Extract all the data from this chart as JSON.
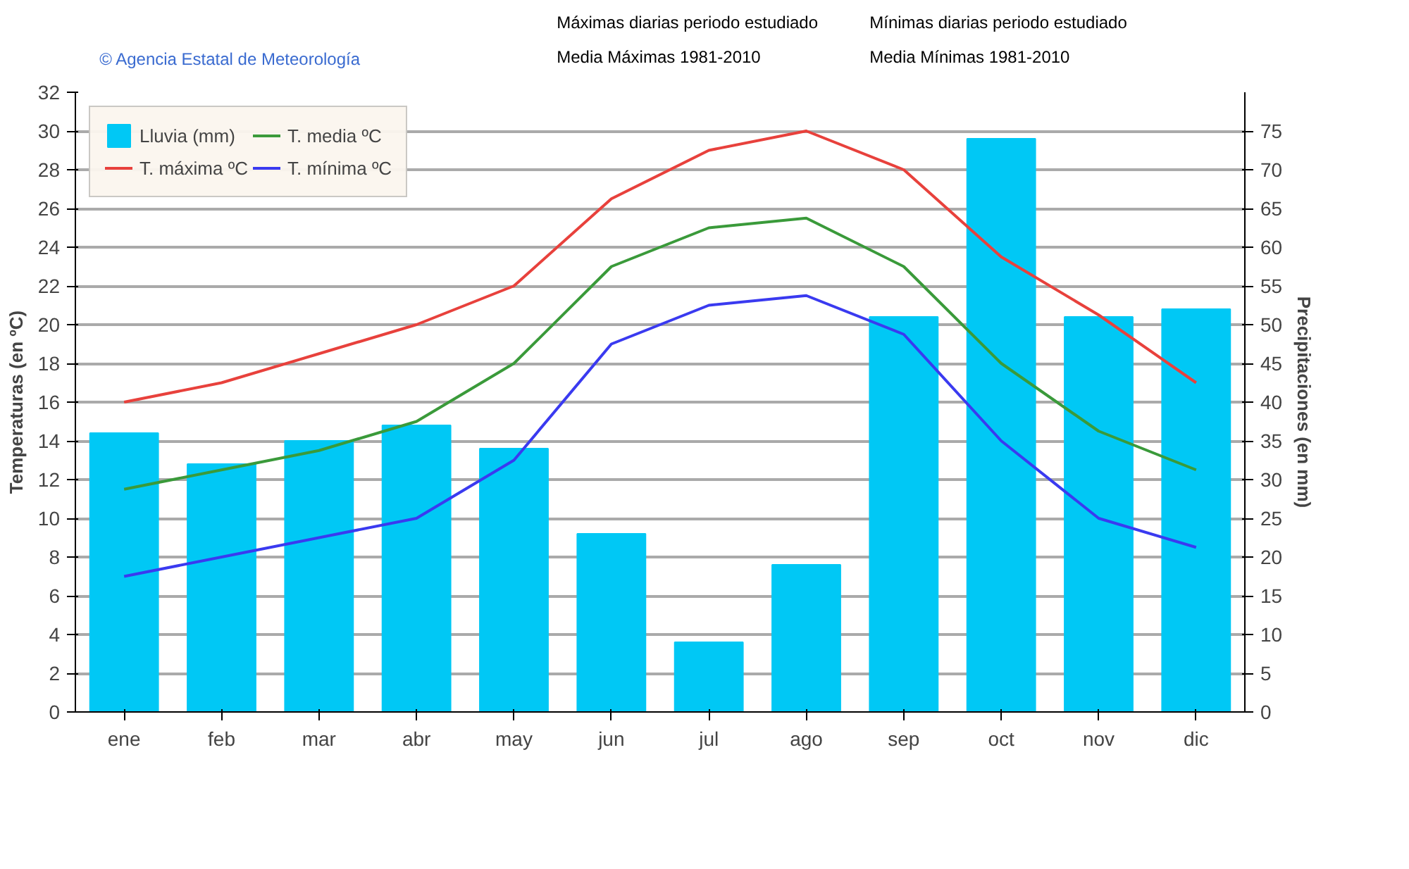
{
  "chart_data": {
    "type": "bar",
    "ylabel": "Temperaturas (en ºC)",
    "y2label": "Precipitaciones (en mm)",
    "annotations": [
      "© Agencia Estatal de Meteorología",
      "Máximas diarias periodo estudiado",
      "Mínimas diarias periodo estudiado",
      "Media Máximas 1981-2010",
      "Media Mínimas 1981-2010"
    ],
    "categories": [
      "ene",
      "feb",
      "mar",
      "abr",
      "may",
      "jun",
      "jul",
      "ago",
      "sep",
      "oct",
      "nov",
      "dic"
    ],
    "series": [
      {
        "name": "Lluvia (mm)",
        "axis": "y2",
        "color": "#00c8f5",
        "values": [
          36,
          32,
          35,
          37,
          34,
          23,
          9,
          19,
          51,
          74,
          51,
          52
        ]
      },
      {
        "name": "T. media ºC",
        "type": "line",
        "color": "#3a9a3a",
        "values": [
          11.5,
          12.5,
          13.5,
          15,
          18,
          23,
          25,
          25.5,
          23,
          18,
          14.5,
          12.5
        ]
      },
      {
        "name": "T. máxima ºC",
        "type": "line",
        "color": "#e8413c",
        "values": [
          16,
          17,
          18.5,
          20,
          22,
          26.5,
          29,
          30,
          28,
          23.5,
          20.5,
          17
        ]
      },
      {
        "name": "T. mínima ºC",
        "type": "line",
        "color": "#3a3af0",
        "values": [
          7,
          8,
          9,
          10,
          13,
          19,
          21,
          21.5,
          19.5,
          14,
          10,
          8.5
        ]
      }
    ],
    "ylim": [
      0,
      32
    ],
    "yticks": [
      0,
      2,
      4,
      6,
      8,
      10,
      12,
      14,
      16,
      18,
      20,
      22,
      24,
      26,
      28,
      30,
      32
    ],
    "y2lim": [
      0,
      80
    ],
    "y2ticks": [
      0,
      5,
      10,
      15,
      20,
      25,
      30,
      35,
      40,
      45,
      50,
      55,
      60,
      65,
      70,
      75
    ],
    "grid": "y",
    "legend": "top left",
    "line_style": "solid"
  }
}
